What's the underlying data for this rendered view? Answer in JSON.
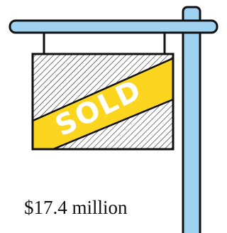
{
  "sign": {
    "label": "SOLD"
  },
  "caption": "$17.4 million"
}
